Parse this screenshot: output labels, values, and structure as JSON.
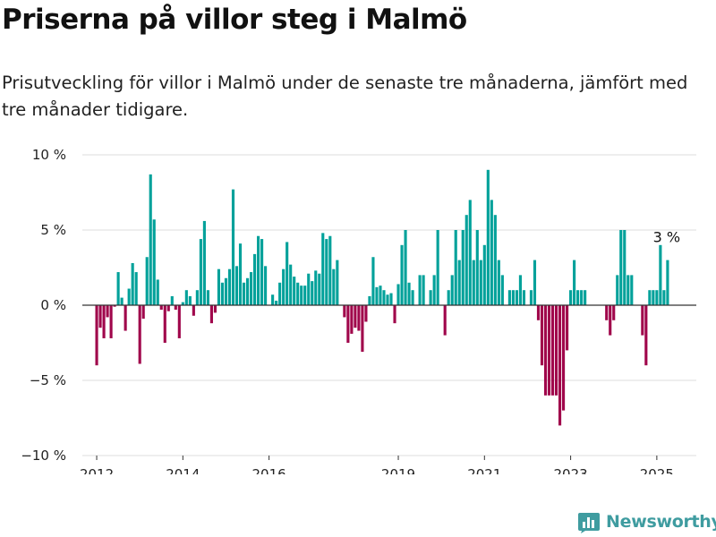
{
  "title": "Priserna på villor steg i Malmö",
  "subtitle": "Prisutveckling för villor i Malmö under de senaste tre månaderna, jämfört med tre månader tidigare.",
  "brand": {
    "name": "Newsworthy",
    "color": "#3f9ca0",
    "icon": "bar-chart-badge-icon"
  },
  "colors": {
    "positive": "#00a19a",
    "negative": "#a0064b",
    "grid": "#dddddd",
    "zero_line": "#333333"
  },
  "chart_data": {
    "type": "bar",
    "title": "Priserna på villor steg i Malmö",
    "xlabel": "",
    "ylabel": "",
    "unit": "%",
    "ylim": [
      -10,
      10
    ],
    "yticks": [
      {
        "value": 10,
        "label": "10 %"
      },
      {
        "value": 5,
        "label": "5 %"
      },
      {
        "value": 0,
        "label": "0 %"
      },
      {
        "value": -5,
        "label": "−5 %"
      },
      {
        "value": -10,
        "label": "−10 %"
      }
    ],
    "xlim": [
      "2011-09",
      "2025-12"
    ],
    "xticks": [
      {
        "date": "2012-01",
        "label": "2012"
      },
      {
        "date": "2014-01",
        "label": "2014"
      },
      {
        "date": "2016-01",
        "label": "2016"
      },
      {
        "date": "2019-01",
        "label": "2019"
      },
      {
        "date": "2021-01",
        "label": "2021"
      },
      {
        "date": "2023-01",
        "label": "2023"
      },
      {
        "date": "2025-01",
        "label": "2025"
      }
    ],
    "grid": true,
    "legend": false,
    "annotation": {
      "date": "2025-03",
      "text": "3 %"
    },
    "series": [
      {
        "points": [
          {
            "date": "2012-01",
            "value": -4.0
          },
          {
            "date": "2012-02",
            "value": -1.5
          },
          {
            "date": "2012-03",
            "value": -2.2
          },
          {
            "date": "2012-04",
            "value": -0.8
          },
          {
            "date": "2012-05",
            "value": -2.2
          },
          {
            "date": "2012-06",
            "value": -0.1
          },
          {
            "date": "2012-07",
            "value": 2.2
          },
          {
            "date": "2012-08",
            "value": 0.5
          },
          {
            "date": "2012-09",
            "value": -1.7
          },
          {
            "date": "2012-10",
            "value": 1.1
          },
          {
            "date": "2012-11",
            "value": 2.8
          },
          {
            "date": "2012-12",
            "value": 2.2
          },
          {
            "date": "2013-01",
            "value": -3.9
          },
          {
            "date": "2013-02",
            "value": -0.9
          },
          {
            "date": "2013-03",
            "value": 3.2
          },
          {
            "date": "2013-04",
            "value": 8.7
          },
          {
            "date": "2013-05",
            "value": 5.7
          },
          {
            "date": "2013-06",
            "value": 1.7
          },
          {
            "date": "2013-07",
            "value": -0.3
          },
          {
            "date": "2013-08",
            "value": -2.5
          },
          {
            "date": "2013-09",
            "value": -0.4
          },
          {
            "date": "2013-10",
            "value": 0.6
          },
          {
            "date": "2013-11",
            "value": -0.3
          },
          {
            "date": "2013-12",
            "value": -2.2
          },
          {
            "date": "2014-01",
            "value": 0.2
          },
          {
            "date": "2014-02",
            "value": 1.0
          },
          {
            "date": "2014-03",
            "value": 0.6
          },
          {
            "date": "2014-04",
            "value": -0.7
          },
          {
            "date": "2014-05",
            "value": 1.0
          },
          {
            "date": "2014-06",
            "value": 4.4
          },
          {
            "date": "2014-07",
            "value": 5.6
          },
          {
            "date": "2014-08",
            "value": 1.0
          },
          {
            "date": "2014-09",
            "value": -1.2
          },
          {
            "date": "2014-10",
            "value": -0.5
          },
          {
            "date": "2014-11",
            "value": 2.4
          },
          {
            "date": "2014-12",
            "value": 1.5
          },
          {
            "date": "2015-01",
            "value": 1.8
          },
          {
            "date": "2015-02",
            "value": 2.4
          },
          {
            "date": "2015-03",
            "value": 7.7
          },
          {
            "date": "2015-04",
            "value": 2.6
          },
          {
            "date": "2015-05",
            "value": 4.1
          },
          {
            "date": "2015-06",
            "value": 1.5
          },
          {
            "date": "2015-07",
            "value": 1.8
          },
          {
            "date": "2015-08",
            "value": 2.2
          },
          {
            "date": "2015-09",
            "value": 3.4
          },
          {
            "date": "2015-10",
            "value": 4.6
          },
          {
            "date": "2015-11",
            "value": 4.4
          },
          {
            "date": "2015-12",
            "value": 2.6
          },
          {
            "date": "2016-01",
            "value": 0.0
          },
          {
            "date": "2016-02",
            "value": 0.7
          },
          {
            "date": "2016-03",
            "value": 0.3
          },
          {
            "date": "2016-04",
            "value": 1.5
          },
          {
            "date": "2016-05",
            "value": 2.4
          },
          {
            "date": "2016-06",
            "value": 4.2
          },
          {
            "date": "2016-07",
            "value": 2.7
          },
          {
            "date": "2016-08",
            "value": 1.9
          },
          {
            "date": "2016-09",
            "value": 1.5
          },
          {
            "date": "2016-10",
            "value": 1.3
          },
          {
            "date": "2016-11",
            "value": 1.3
          },
          {
            "date": "2016-12",
            "value": 2.1
          },
          {
            "date": "2017-01",
            "value": 1.6
          },
          {
            "date": "2017-02",
            "value": 2.3
          },
          {
            "date": "2017-03",
            "value": 2.1
          },
          {
            "date": "2017-04",
            "value": 4.8
          },
          {
            "date": "2017-05",
            "value": 4.4
          },
          {
            "date": "2017-06",
            "value": 4.6
          },
          {
            "date": "2017-07",
            "value": 2.4
          },
          {
            "date": "2017-08",
            "value": 3.0
          },
          {
            "date": "2017-09",
            "value": 0.0
          },
          {
            "date": "2017-10",
            "value": -0.8
          },
          {
            "date": "2017-11",
            "value": -2.5
          },
          {
            "date": "2017-12",
            "value": -1.9
          },
          {
            "date": "2018-01",
            "value": -1.5
          },
          {
            "date": "2018-02",
            "value": -1.7
          },
          {
            "date": "2018-03",
            "value": -3.1
          },
          {
            "date": "2018-04",
            "value": -1.1
          },
          {
            "date": "2018-05",
            "value": 0.6
          },
          {
            "date": "2018-06",
            "value": 3.2
          },
          {
            "date": "2018-07",
            "value": 1.2
          },
          {
            "date": "2018-08",
            "value": 1.3
          },
          {
            "date": "2018-09",
            "value": 1.0
          },
          {
            "date": "2018-10",
            "value": 0.7
          },
          {
            "date": "2018-11",
            "value": 0.8
          },
          {
            "date": "2018-12",
            "value": -1.2
          },
          {
            "date": "2019-01",
            "value": 1.4
          },
          {
            "date": "2019-02",
            "value": 4.0
          },
          {
            "date": "2019-03",
            "value": 5.0
          },
          {
            "date": "2019-04",
            "value": 1.5
          },
          {
            "date": "2019-05",
            "value": 1.0
          },
          {
            "date": "2019-06",
            "value": 0.0
          },
          {
            "date": "2019-07",
            "value": 2.0
          },
          {
            "date": "2019-08",
            "value": 2.0
          },
          {
            "date": "2019-09",
            "value": 0.0
          },
          {
            "date": "2019-10",
            "value": 1.0
          },
          {
            "date": "2019-11",
            "value": 2.0
          },
          {
            "date": "2019-12",
            "value": 5.0
          },
          {
            "date": "2020-01",
            "value": 0.0
          },
          {
            "date": "2020-02",
            "value": -2.0
          },
          {
            "date": "2020-03",
            "value": 1.0
          },
          {
            "date": "2020-04",
            "value": 2.0
          },
          {
            "date": "2020-05",
            "value": 5.0
          },
          {
            "date": "2020-06",
            "value": 3.0
          },
          {
            "date": "2020-07",
            "value": 5.0
          },
          {
            "date": "2020-08",
            "value": 6.0
          },
          {
            "date": "2020-09",
            "value": 7.0
          },
          {
            "date": "2020-10",
            "value": 3.0
          },
          {
            "date": "2020-11",
            "value": 5.0
          },
          {
            "date": "2020-12",
            "value": 3.0
          },
          {
            "date": "2021-01",
            "value": 4.0
          },
          {
            "date": "2021-02",
            "value": 9.0
          },
          {
            "date": "2021-03",
            "value": 7.0
          },
          {
            "date": "2021-04",
            "value": 6.0
          },
          {
            "date": "2021-05",
            "value": 3.0
          },
          {
            "date": "2021-06",
            "value": 2.0
          },
          {
            "date": "2021-07",
            "value": 0.0
          },
          {
            "date": "2021-08",
            "value": 1.0
          },
          {
            "date": "2021-09",
            "value": 1.0
          },
          {
            "date": "2021-10",
            "value": 1.0
          },
          {
            "date": "2021-11",
            "value": 2.0
          },
          {
            "date": "2021-12",
            "value": 1.0
          },
          {
            "date": "2022-01",
            "value": 0.0
          },
          {
            "date": "2022-02",
            "value": 1.0
          },
          {
            "date": "2022-03",
            "value": 3.0
          },
          {
            "date": "2022-04",
            "value": -1.0
          },
          {
            "date": "2022-05",
            "value": -4.0
          },
          {
            "date": "2022-06",
            "value": -6.0
          },
          {
            "date": "2022-07",
            "value": -6.0
          },
          {
            "date": "2022-08",
            "value": -6.0
          },
          {
            "date": "2022-09",
            "value": -6.0
          },
          {
            "date": "2022-10",
            "value": -8.0
          },
          {
            "date": "2022-11",
            "value": -7.0
          },
          {
            "date": "2022-12",
            "value": -3.0
          },
          {
            "date": "2023-01",
            "value": 1.0
          },
          {
            "date": "2023-02",
            "value": 3.0
          },
          {
            "date": "2023-03",
            "value": 1.0
          },
          {
            "date": "2023-04",
            "value": 1.0
          },
          {
            "date": "2023-05",
            "value": 1.0
          },
          {
            "date": "2023-06",
            "value": 0.0
          },
          {
            "date": "2023-07",
            "value": 0.0
          },
          {
            "date": "2023-08",
            "value": 0.0
          },
          {
            "date": "2023-09",
            "value": 0.0
          },
          {
            "date": "2023-10",
            "value": 0.0
          },
          {
            "date": "2023-11",
            "value": -1.0
          },
          {
            "date": "2023-12",
            "value": -2.0
          },
          {
            "date": "2024-01",
            "value": -1.0
          },
          {
            "date": "2024-02",
            "value": 2.0
          },
          {
            "date": "2024-03",
            "value": 5.0
          },
          {
            "date": "2024-04",
            "value": 5.0
          },
          {
            "date": "2024-05",
            "value": 2.0
          },
          {
            "date": "2024-06",
            "value": 2.0
          },
          {
            "date": "2024-07",
            "value": 0.0
          },
          {
            "date": "2024-08",
            "value": 0.0
          },
          {
            "date": "2024-09",
            "value": -2.0
          },
          {
            "date": "2024-10",
            "value": -4.0
          },
          {
            "date": "2024-11",
            "value": 1.0
          },
          {
            "date": "2024-12",
            "value": 1.0
          },
          {
            "date": "2025-01",
            "value": 1.0
          },
          {
            "date": "2025-02",
            "value": 4.0
          },
          {
            "date": "2025-03",
            "value": 1.0
          },
          {
            "date": "2025-04",
            "value": 3.0
          }
        ]
      }
    ]
  }
}
